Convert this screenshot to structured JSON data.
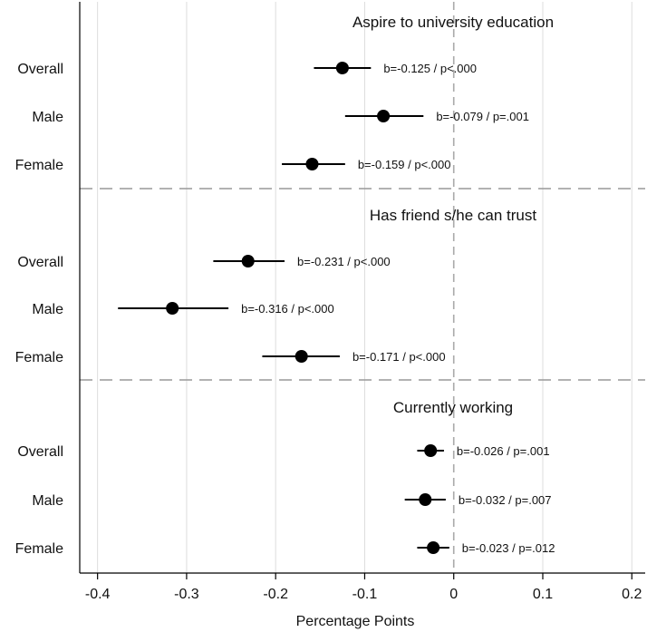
{
  "chart_data": {
    "type": "scatter",
    "subtype": "coefficient-plot",
    "xlabel": "Percentage Points",
    "xlim": [
      -0.42,
      0.215
    ],
    "xticks": [
      -0.4,
      -0.3,
      -0.2,
      -0.1,
      0,
      0.1,
      0.2
    ],
    "xtick_labels": [
      "-0.4",
      "-0.3",
      "-0.2",
      "-0.1",
      "0",
      "0.1",
      "0.2"
    ],
    "grid": "vertical",
    "reference_line": 0,
    "colors": {
      "marker": "#000000",
      "ci_line": "#000000",
      "grid": "#dddddd",
      "divider": "#999999",
      "reference": "#aaaaaa"
    },
    "panels": [
      {
        "title": "Aspire to university education",
        "rows": [
          {
            "label": "Overall",
            "b": -0.125,
            "ci": [
              -0.157,
              -0.093
            ],
            "annotation": "b=-0.125 / p<.000"
          },
          {
            "label": "Male",
            "b": -0.079,
            "ci": [
              -0.122,
              -0.034
            ],
            "annotation": "b=-0.079 / p=.001"
          },
          {
            "label": "Female",
            "b": -0.159,
            "ci": [
              -0.193,
              -0.122
            ],
            "annotation": "b=-0.159 / p<.000"
          }
        ]
      },
      {
        "title": "Has friend s/he can trust",
        "rows": [
          {
            "label": "Overall",
            "b": -0.231,
            "ci": [
              -0.27,
              -0.19
            ],
            "annotation": "b=-0.231 / p<.000"
          },
          {
            "label": "Male",
            "b": -0.316,
            "ci": [
              -0.377,
              -0.253
            ],
            "annotation": "b=-0.316 / p<.000"
          },
          {
            "label": "Female",
            "b": -0.171,
            "ci": [
              -0.215,
              -0.128
            ],
            "annotation": "b=-0.171 / p<.000"
          }
        ]
      },
      {
        "title": "Currently working",
        "rows": [
          {
            "label": "Overall",
            "b": -0.026,
            "ci": [
              -0.041,
              -0.011
            ],
            "annotation": "b=-0.026 / p=.001"
          },
          {
            "label": "Male",
            "b": -0.032,
            "ci": [
              -0.055,
              -0.009
            ],
            "annotation": "b=-0.032 / p=.007"
          },
          {
            "label": "Female",
            "b": -0.023,
            "ci": [
              -0.041,
              -0.005
            ],
            "annotation": "b=-0.023 / p=.012"
          }
        ]
      }
    ]
  }
}
